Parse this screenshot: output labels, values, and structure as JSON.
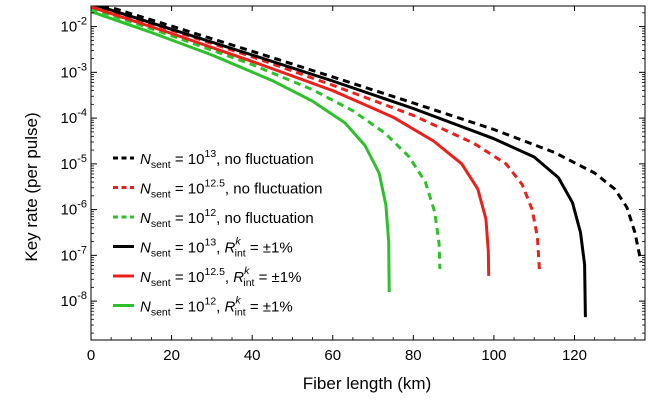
{
  "chart_data": {
    "type": "line",
    "xlabel": "Fiber length (km)",
    "ylabel": "Key rate (per pulse)",
    "xlim": [
      0,
      137.5
    ],
    "ylim_log10": [
      -8.85,
      -1.55
    ],
    "yscale": "log",
    "grid": false,
    "legend_placement": "lower-left",
    "x_ticks": [
      0,
      20,
      40,
      60,
      80,
      100,
      120
    ],
    "x_tick_labels": [
      "0",
      "20",
      "40",
      "60",
      "80",
      "100",
      "120"
    ],
    "y_ticks_log10": [
      -2,
      -3,
      -4,
      -5,
      -6,
      -7,
      -8
    ],
    "y_tick_labels": [
      {
        "base": "10",
        "exp": "-2"
      },
      {
        "base": "10",
        "exp": "-3"
      },
      {
        "base": "10",
        "exp": "-4"
      },
      {
        "base": "10",
        "exp": "-5"
      },
      {
        "base": "10",
        "exp": "-6"
      },
      {
        "base": "10",
        "exp": "-7"
      },
      {
        "base": "10",
        "exp": "-8"
      }
    ],
    "series": [
      {
        "name": "N_sent = 10^13, no fluctuation",
        "label": {
          "n": "N",
          "sub": "sent",
          "eq": " = 10",
          "exp": "13",
          "tail": ",   no fluctuation"
        },
        "color": "#000000",
        "dash": true,
        "points": [
          [
            0,
            -1.45
          ],
          [
            20,
            -1.99
          ],
          [
            40,
            -2.54
          ],
          [
            60,
            -3.1
          ],
          [
            80,
            -3.67
          ],
          [
            100,
            -4.25
          ],
          [
            115,
            -4.75
          ],
          [
            125,
            -5.2
          ],
          [
            130,
            -5.55
          ],
          [
            133,
            -5.95
          ],
          [
            135,
            -6.5
          ],
          [
            136.5,
            -7.15
          ]
        ]
      },
      {
        "name": "N_sent = 10^12.5, no fluctuation",
        "label": {
          "n": "N",
          "sub": "sent",
          "eq": " = 10",
          "exp": "12.5",
          "tail": ", no fluctuation"
        },
        "color": "#e8211c",
        "dash": true,
        "points": [
          [
            0,
            -1.52
          ],
          [
            20,
            -2.08
          ],
          [
            40,
            -2.66
          ],
          [
            60,
            -3.28
          ],
          [
            80,
            -3.94
          ],
          [
            95,
            -4.55
          ],
          [
            103,
            -5.0
          ],
          [
            107,
            -5.45
          ],
          [
            109.5,
            -6.0
          ],
          [
            110.8,
            -6.6
          ],
          [
            111.3,
            -7.3
          ]
        ]
      },
      {
        "name": "N_sent = 10^12, no fluctuation",
        "label": {
          "n": "N",
          "sub": "sent",
          "eq": " = 10",
          "exp": "12",
          "tail": ",   no fluctuation"
        },
        "color": "#2ec02a",
        "dash": true,
        "points": [
          [
            0,
            -1.6
          ],
          [
            20,
            -2.2
          ],
          [
            40,
            -2.83
          ],
          [
            55,
            -3.38
          ],
          [
            65,
            -3.84
          ],
          [
            73,
            -4.33
          ],
          [
            79,
            -4.85
          ],
          [
            83,
            -5.4
          ],
          [
            85.3,
            -6.05
          ],
          [
            86.4,
            -6.75
          ],
          [
            86.6,
            -7.3
          ]
        ]
      },
      {
        "name": "N_sent = 10^13, R_int^k = ±1%",
        "label": {
          "n": "N",
          "sub": "sent",
          "eq": " = 10",
          "exp": "13",
          "tail": ",   ",
          "r": "R",
          "rsub": "int",
          "rsup": "k",
          "rtail": " = ±1%"
        },
        "color": "#000000",
        "dash": false,
        "points": [
          [
            0,
            -1.5
          ],
          [
            20,
            -2.06
          ],
          [
            40,
            -2.62
          ],
          [
            60,
            -3.19
          ],
          [
            80,
            -3.79
          ],
          [
            100,
            -4.45
          ],
          [
            110,
            -4.85
          ],
          [
            116,
            -5.3
          ],
          [
            119.5,
            -5.85
          ],
          [
            121.5,
            -6.5
          ],
          [
            122.5,
            -7.2
          ],
          [
            122.7,
            -8.35
          ]
        ]
      },
      {
        "name": "N_sent = 10^12.5, R_int^k = ±1%",
        "label": {
          "n": "N",
          "sub": "sent",
          "eq": " = 10",
          "exp": "12.5",
          "tail": ", ",
          "r": "R",
          "rsub": "int",
          "rsup": "k",
          "rtail": " = ±1%"
        },
        "color": "#e8211c",
        "dash": false,
        "points": [
          [
            0,
            -1.57
          ],
          [
            20,
            -2.15
          ],
          [
            40,
            -2.76
          ],
          [
            60,
            -3.4
          ],
          [
            75,
            -3.98
          ],
          [
            85,
            -4.5
          ],
          [
            92,
            -5.0
          ],
          [
            96,
            -5.55
          ],
          [
            98,
            -6.2
          ],
          [
            98.6,
            -6.9
          ],
          [
            98.7,
            -7.45
          ]
        ]
      },
      {
        "name": "N_sent = 10^12, R_int^k = ±1%",
        "label": {
          "n": "N",
          "sub": "sent",
          "eq": " = 10",
          "exp": "12",
          "tail": ",   ",
          "r": "R",
          "rsub": "int",
          "rsup": "k",
          "rtail": " = ±1%"
        },
        "color": "#2ec02a",
        "dash": false,
        "points": [
          [
            0,
            -1.67
          ],
          [
            15,
            -2.13
          ],
          [
            30,
            -2.62
          ],
          [
            45,
            -3.18
          ],
          [
            55,
            -3.63
          ],
          [
            63,
            -4.1
          ],
          [
            68,
            -4.6
          ],
          [
            71.5,
            -5.2
          ],
          [
            73.2,
            -5.9
          ],
          [
            73.9,
            -6.7
          ],
          [
            74,
            -7.8
          ]
        ]
      }
    ]
  }
}
